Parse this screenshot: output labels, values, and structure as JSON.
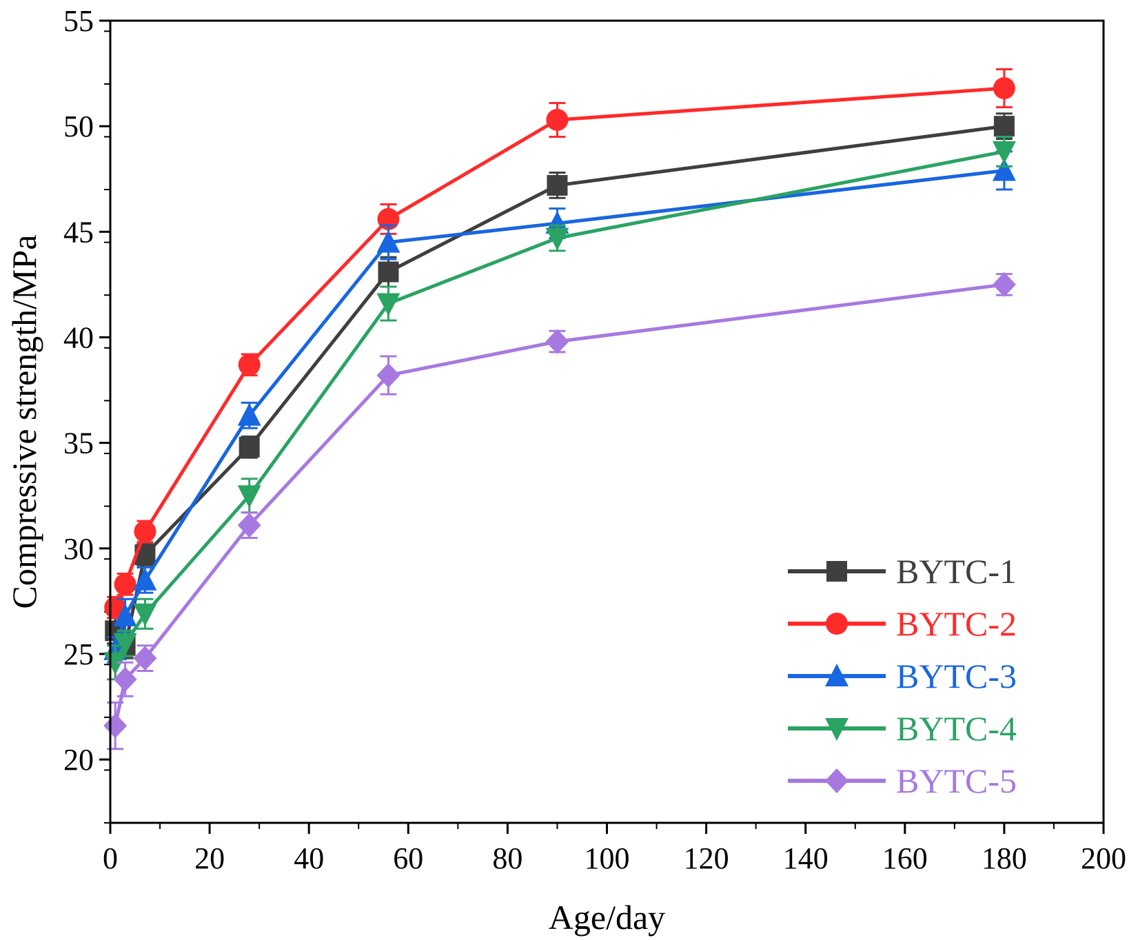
{
  "chart_data": {
    "type": "line",
    "title": "",
    "xlabel": "Age/day",
    "ylabel": "Compressive strength/MPa",
    "xlim": [
      0,
      200
    ],
    "ylim": [
      17,
      55
    ],
    "xticks": [
      0,
      20,
      40,
      60,
      80,
      100,
      120,
      140,
      160,
      180,
      200
    ],
    "yticks": [
      20,
      25,
      30,
      35,
      40,
      45,
      50,
      55
    ],
    "grid": false,
    "legend_position": "bottom-right",
    "x": [
      1,
      3,
      7,
      28,
      56,
      90,
      180
    ],
    "series": [
      {
        "name": "BYTC-1",
        "color": "#3f3f3f",
        "marker": "square",
        "values": [
          26.1,
          25.4,
          29.7,
          34.8,
          43.1,
          47.2,
          50.0
        ],
        "errors": [
          0.6,
          0.6,
          0.5,
          0.5,
          0.7,
          0.6,
          0.6
        ]
      },
      {
        "name": "BYTC-2",
        "color": "#ff2a2a",
        "marker": "circle",
        "values": [
          27.2,
          28.3,
          30.8,
          38.7,
          45.6,
          50.3,
          51.8
        ],
        "errors": [
          0.5,
          0.5,
          0.5,
          0.5,
          0.7,
          0.8,
          0.9
        ]
      },
      {
        "name": "BYTC-3",
        "color": "#1866e0",
        "marker": "triangle-up",
        "values": [
          25.2,
          26.8,
          28.5,
          36.3,
          44.5,
          45.4,
          47.9
        ],
        "errors": [
          0.6,
          0.8,
          0.6,
          0.6,
          0.8,
          0.7,
          0.9
        ]
      },
      {
        "name": "BYTC-4",
        "color": "#2aa363",
        "marker": "triangle-down",
        "values": [
          24.6,
          25.5,
          26.9,
          32.5,
          41.6,
          44.7,
          48.8
        ],
        "errors": [
          0.8,
          0.6,
          0.7,
          0.8,
          0.8,
          0.6,
          0.7
        ]
      },
      {
        "name": "BYTC-5",
        "color": "#a779e0",
        "marker": "diamond",
        "values": [
          21.6,
          23.8,
          24.8,
          31.1,
          38.2,
          39.8,
          42.5
        ],
        "errors": [
          1.1,
          0.8,
          0.6,
          0.6,
          0.9,
          0.5,
          0.5
        ]
      }
    ]
  }
}
